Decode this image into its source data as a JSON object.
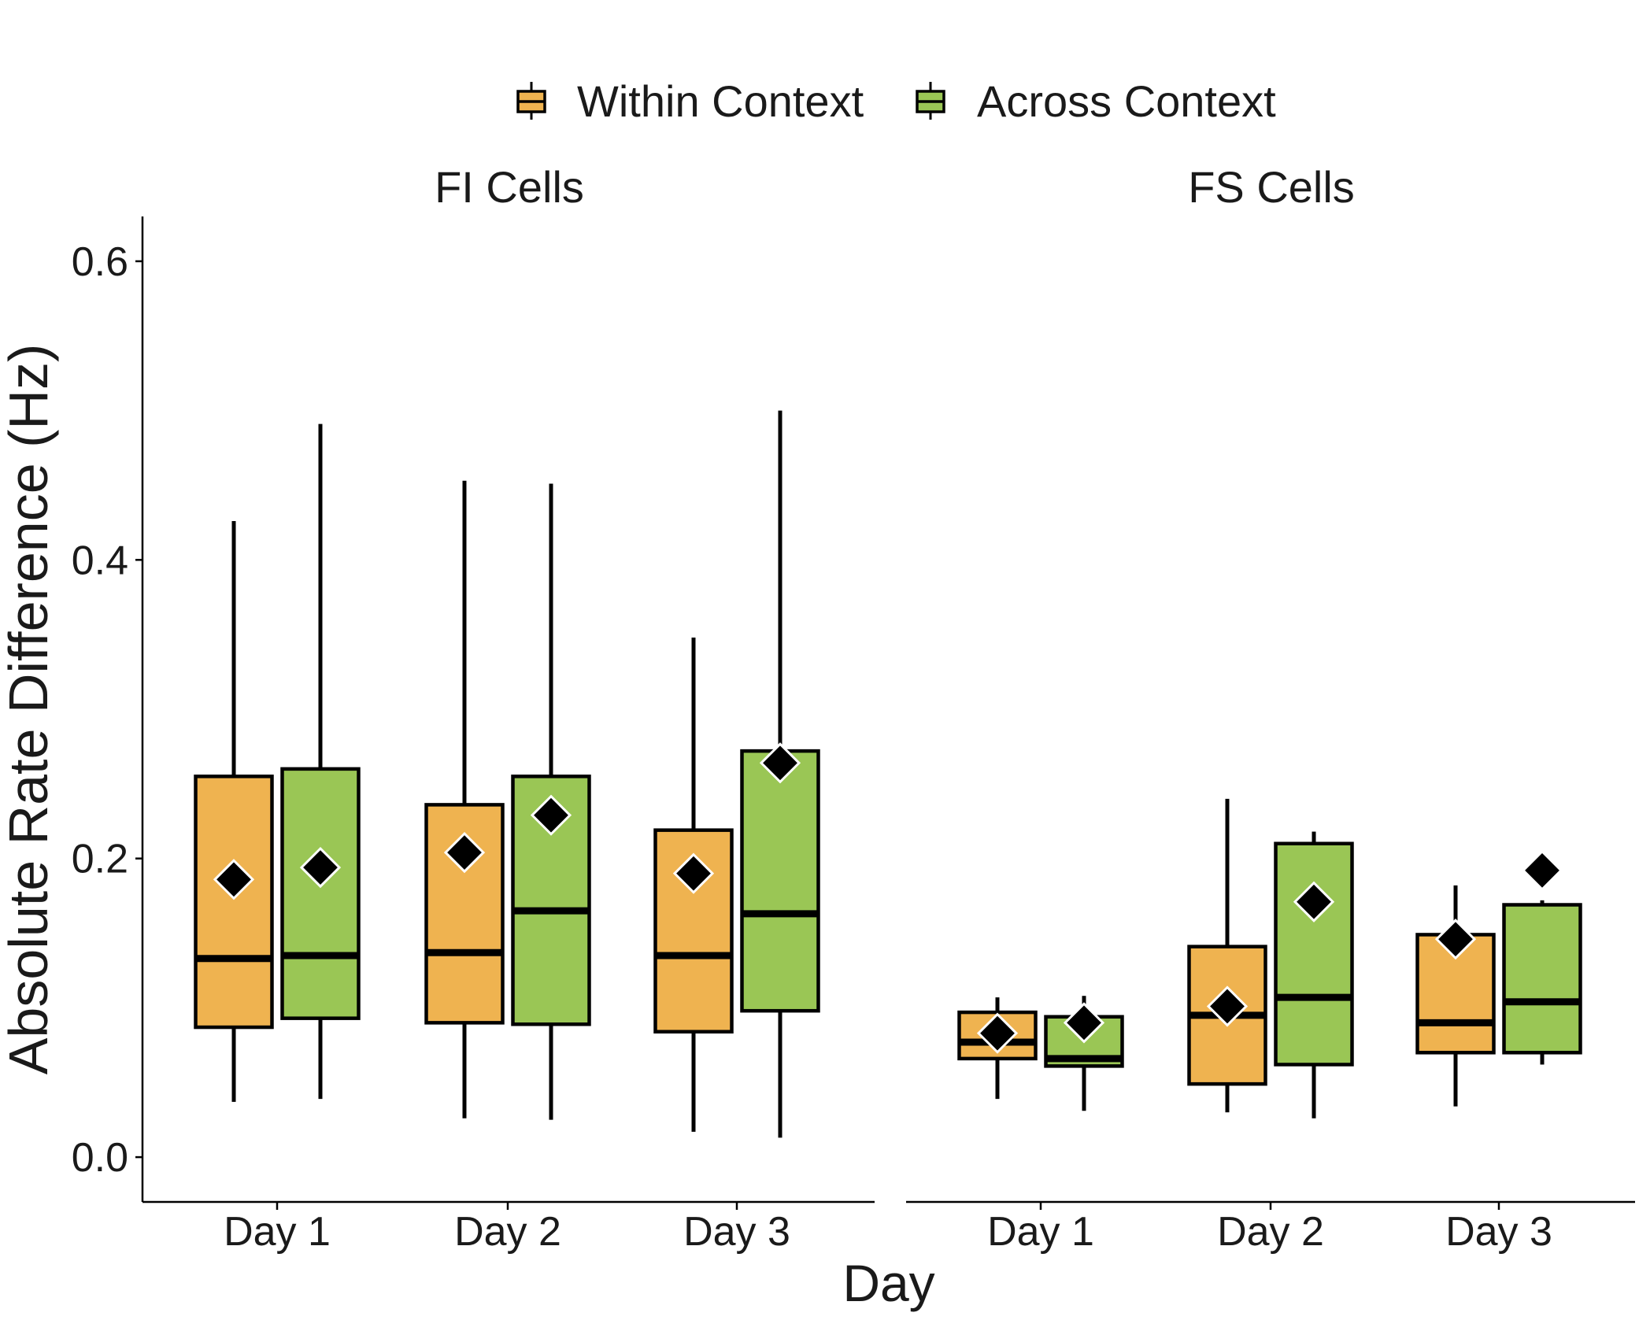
{
  "legend": {
    "placement": "top",
    "items": [
      {
        "label": "Within Context",
        "color": "#EFB350"
      },
      {
        "label": "Across Context",
        "color": "#9AC655"
      }
    ]
  },
  "chart_data": {
    "type": "box",
    "xlabel": "Day",
    "ylabel": "Absolute Rate Difference (Hz)",
    "ylim": [
      -0.03,
      0.63
    ],
    "yticks": [
      "0.0",
      "0.2",
      "0.4",
      "0.6"
    ],
    "ytick_values": [
      0.0,
      0.2,
      0.4,
      0.6
    ],
    "grid": false,
    "categories": [
      "Day 1",
      "Day 2",
      "Day 3"
    ],
    "series_names": [
      "Within Context",
      "Across Context"
    ],
    "mean_marker": "diamond",
    "panels": [
      {
        "title": "FI Cells",
        "boxes": [
          {
            "category": "Day 1",
            "series": "Within Context",
            "whisker_low": 0.037,
            "q1": 0.087,
            "median": 0.133,
            "q3": 0.255,
            "whisker_high": 0.426,
            "mean": 0.186
          },
          {
            "category": "Day 1",
            "series": "Across Context",
            "whisker_low": 0.039,
            "q1": 0.093,
            "median": 0.135,
            "q3": 0.26,
            "whisker_high": 0.491,
            "mean": 0.194
          },
          {
            "category": "Day 2",
            "series": "Within Context",
            "whisker_low": 0.026,
            "q1": 0.09,
            "median": 0.137,
            "q3": 0.236,
            "whisker_high": 0.453,
            "mean": 0.204
          },
          {
            "category": "Day 2",
            "series": "Across Context",
            "whisker_low": 0.025,
            "q1": 0.089,
            "median": 0.165,
            "q3": 0.255,
            "whisker_high": 0.451,
            "mean": 0.229
          },
          {
            "category": "Day 3",
            "series": "Within Context",
            "whisker_low": 0.017,
            "q1": 0.084,
            "median": 0.135,
            "q3": 0.219,
            "whisker_high": 0.348,
            "mean": 0.19
          },
          {
            "category": "Day 3",
            "series": "Across Context",
            "whisker_low": 0.013,
            "q1": 0.098,
            "median": 0.163,
            "q3": 0.272,
            "whisker_high": 0.5,
            "mean": 0.264
          }
        ]
      },
      {
        "title": "FS Cells",
        "boxes": [
          {
            "category": "Day 1",
            "series": "Within Context",
            "whisker_low": 0.039,
            "q1": 0.066,
            "median": 0.077,
            "q3": 0.097,
            "whisker_high": 0.107,
            "mean": 0.083
          },
          {
            "category": "Day 1",
            "series": "Across Context",
            "whisker_low": 0.031,
            "q1": 0.061,
            "median": 0.066,
            "q3": 0.094,
            "whisker_high": 0.108,
            "mean": 0.09
          },
          {
            "category": "Day 2",
            "series": "Within Context",
            "whisker_low": 0.03,
            "q1": 0.049,
            "median": 0.095,
            "q3": 0.141,
            "whisker_high": 0.24,
            "mean": 0.101
          },
          {
            "category": "Day 2",
            "series": "Across Context",
            "whisker_low": 0.026,
            "q1": 0.062,
            "median": 0.107,
            "q3": 0.21,
            "whisker_high": 0.218,
            "mean": 0.171
          },
          {
            "category": "Day 3",
            "series": "Within Context",
            "whisker_low": 0.034,
            "q1": 0.07,
            "median": 0.09,
            "q3": 0.149,
            "whisker_high": 0.182,
            "mean": 0.146
          },
          {
            "category": "Day 3",
            "series": "Across Context",
            "whisker_low": 0.062,
            "q1": 0.07,
            "median": 0.104,
            "q3": 0.169,
            "whisker_high": 0.172,
            "mean": 0.192
          }
        ]
      }
    ]
  }
}
